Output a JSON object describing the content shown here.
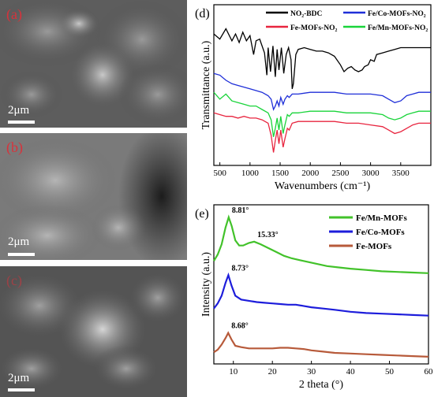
{
  "sem_panels": [
    {
      "label": "(a)",
      "scale": "2μm"
    },
    {
      "label": "(b)",
      "scale": "2μm"
    },
    {
      "label": "(c)",
      "scale": "2μm"
    }
  ],
  "chart_data": [
    {
      "type": "line",
      "panel_label": "(d)",
      "xlabel": "Wavenumbers (cm⁻¹)",
      "ylabel": "Transmittance (a.u.)",
      "xlim": [
        400,
        4000
      ],
      "x_ticks": [
        500,
        1000,
        1500,
        2000,
        2500,
        3000,
        3500
      ],
      "grid": false,
      "legend_placement": "top",
      "series": [
        {
          "name": "NO₂-BDC",
          "color": "#000000",
          "offset": 3,
          "x": [
            400,
            500,
            600,
            700,
            760,
            820,
            880,
            940,
            1000,
            1060,
            1100,
            1160,
            1240,
            1280,
            1300,
            1340,
            1380,
            1420,
            1450,
            1480,
            1520,
            1560,
            1600,
            1640,
            1680,
            1700,
            1720,
            1760,
            1800,
            1900,
            2000,
            2100,
            2200,
            2300,
            2400,
            2500,
            2560,
            2620,
            2680,
            2740,
            2800,
            2860,
            2900,
            2960,
            3000,
            3060,
            3100,
            3200,
            3300,
            3400,
            3500,
            3600,
            3700,
            3800,
            3900,
            4000
          ],
          "y": [
            0.6,
            0.3,
            0.9,
            0.2,
            0.6,
            0.1,
            0.7,
            0.2,
            0.5,
            -0.6,
            0.2,
            0.3,
            -0.5,
            -1.8,
            -0.2,
            -1.6,
            -0.1,
            -1.9,
            -0.3,
            -1.5,
            -0.2,
            -1.7,
            -0.6,
            -0.2,
            -0.9,
            -2.6,
            -2.3,
            -0.6,
            -0.3,
            -0.2,
            -0.3,
            -0.4,
            -0.4,
            -0.5,
            -0.7,
            -1.2,
            -1.6,
            -1.4,
            -1.3,
            -1.5,
            -1.6,
            -1.5,
            -1.3,
            -1.2,
            -0.9,
            -1.0,
            -0.6,
            -0.5,
            -0.4,
            -0.3,
            -0.2,
            -0.2,
            -0.2,
            -0.2,
            -0.2,
            -0.2
          ]
        },
        {
          "name": "Fe/Co-MOFs-NO₂",
          "color": "#1f2fd8",
          "offset": 1,
          "x": [
            400,
            500,
            600,
            700,
            800,
            900,
            1000,
            1100,
            1200,
            1300,
            1350,
            1390,
            1420,
            1450,
            1480,
            1510,
            1550,
            1580,
            1620,
            1650,
            1700,
            1800,
            2000,
            2200,
            2400,
            2600,
            2800,
            3000,
            3200,
            3300,
            3400,
            3500,
            3600,
            3700,
            3800,
            3900,
            4000
          ],
          "y": [
            0.3,
            0.2,
            -0.1,
            -0.3,
            -0.4,
            -0.5,
            -0.6,
            -0.7,
            -0.8,
            -1.0,
            -1.2,
            -1.8,
            -1.6,
            -1.3,
            -1.6,
            -1.1,
            -1.5,
            -1.2,
            -1.0,
            -1.1,
            -0.9,
            -0.9,
            -0.8,
            -0.8,
            -0.8,
            -0.9,
            -0.9,
            -0.9,
            -1.0,
            -1.2,
            -1.4,
            -1.3,
            -1.0,
            -0.9,
            -0.8,
            -0.8,
            -0.8
          ]
        },
        {
          "name": "Fe-MOFs-NO₂",
          "color": "#e8253f",
          "offset": -1,
          "x": [
            400,
            500,
            600,
            700,
            800,
            900,
            1000,
            1100,
            1200,
            1300,
            1350,
            1390,
            1420,
            1450,
            1480,
            1510,
            1550,
            1580,
            1620,
            1650,
            1700,
            1800,
            2000,
            2200,
            2400,
            2600,
            2800,
            3000,
            3200,
            3300,
            3400,
            3500,
            3600,
            3700,
            3800,
            3900,
            4000
          ],
          "y": [
            0.0,
            -0.1,
            -0.2,
            -0.2,
            -0.3,
            -0.2,
            -0.3,
            -0.3,
            -0.4,
            -0.6,
            -1.3,
            -2.3,
            -1.6,
            -1.0,
            -1.8,
            -1.0,
            -2.0,
            -1.5,
            -0.9,
            -1.0,
            -0.6,
            -0.5,
            -0.5,
            -0.5,
            -0.5,
            -0.6,
            -0.6,
            -0.7,
            -0.8,
            -1.0,
            -1.2,
            -1.1,
            -0.9,
            -0.7,
            -0.6,
            -0.6,
            -0.6
          ]
        },
        {
          "name": "Fe/Mn-MOFs-NO₂",
          "color": "#19d43a",
          "offset": 0,
          "x": [
            400,
            500,
            600,
            700,
            800,
            900,
            1000,
            1100,
            1200,
            1300,
            1350,
            1390,
            1420,
            1450,
            1480,
            1510,
            1550,
            1580,
            1620,
            1650,
            1700,
            1800,
            2000,
            2200,
            2400,
            2600,
            2800,
            3000,
            3200,
            3300,
            3400,
            3500,
            3600,
            3700,
            3800,
            3900,
            4000
          ],
          "y": [
            0.2,
            -0.2,
            0.1,
            -0.3,
            -0.4,
            -0.5,
            -0.6,
            -0.6,
            -0.8,
            -1.0,
            -1.4,
            -2.4,
            -1.9,
            -1.3,
            -2.0,
            -1.2,
            -2.2,
            -1.7,
            -1.1,
            -1.2,
            -1.0,
            -1.0,
            -0.9,
            -0.9,
            -0.9,
            -1.0,
            -1.0,
            -1.0,
            -1.1,
            -1.3,
            -1.4,
            -1.3,
            -1.1,
            -1.0,
            -0.9,
            -0.9,
            -0.9
          ]
        }
      ]
    },
    {
      "type": "line",
      "panel_label": "(e)",
      "xlabel": "2 theta (°)",
      "ylabel": "Intensity (a.u.)",
      "xlim": [
        5,
        60
      ],
      "x_ticks": [
        10,
        20,
        30,
        40,
        50,
        60
      ],
      "grid": false,
      "legend_placement": "top-right",
      "series": [
        {
          "name": "Fe/Mn-MOFs",
          "color": "#42c22a",
          "offset": 6.5,
          "x": [
            5,
            6,
            7,
            8,
            8.81,
            9.6,
            10.5,
            11.5,
            12.5,
            14,
            15.33,
            17,
            19,
            21,
            23,
            25,
            28,
            31,
            34,
            37,
            40,
            44,
            48,
            52,
            56,
            60
          ],
          "y": [
            1.0,
            1.5,
            2.3,
            3.6,
            4.4,
            3.7,
            2.6,
            2.2,
            2.2,
            2.4,
            2.5,
            2.3,
            2.0,
            1.7,
            1.4,
            1.2,
            1.0,
            0.8,
            0.6,
            0.5,
            0.4,
            0.3,
            0.2,
            0.15,
            0.1,
            0.05
          ]
        },
        {
          "name": "Fe/Co-MOFs",
          "color": "#1d1ddb",
          "offset": 3.2,
          "x": [
            5,
            6,
            7,
            8,
            8.73,
            9.5,
            10.5,
            12,
            14,
            16,
            18,
            20,
            22,
            24,
            26,
            28,
            30,
            33,
            36,
            40,
            44,
            48,
            52,
            56,
            60
          ],
          "y": [
            0.6,
            1.0,
            1.6,
            2.6,
            3.2,
            2.4,
            1.6,
            1.3,
            1.2,
            1.1,
            1.05,
            1.0,
            0.95,
            0.9,
            0.9,
            0.8,
            0.7,
            0.6,
            0.5,
            0.35,
            0.25,
            0.2,
            0.15,
            0.1,
            0.05
          ]
        },
        {
          "name": "Fe-MOFs",
          "color": "#b75a3a",
          "offset": 0,
          "x": [
            5,
            6,
            7,
            8,
            8.68,
            9.5,
            10.5,
            12,
            14,
            16,
            18,
            20,
            22,
            24,
            26,
            28,
            30,
            33,
            36,
            40,
            44,
            48,
            52,
            56,
            60
          ],
          "y": [
            0.4,
            0.6,
            1.0,
            1.5,
            1.9,
            1.4,
            0.9,
            0.8,
            0.7,
            0.7,
            0.7,
            0.7,
            0.75,
            0.75,
            0.7,
            0.65,
            0.55,
            0.45,
            0.35,
            0.3,
            0.25,
            0.2,
            0.15,
            0.1,
            0.05
          ]
        }
      ],
      "annotations": [
        {
          "text": "8.81°",
          "x": 8.81,
          "series": 0
        },
        {
          "text": "15.33°",
          "x": 15.33,
          "series": 0
        },
        {
          "text": "8.73°",
          "x": 8.73,
          "series": 1
        },
        {
          "text": "8.68°",
          "x": 8.68,
          "series": 2
        }
      ]
    }
  ]
}
